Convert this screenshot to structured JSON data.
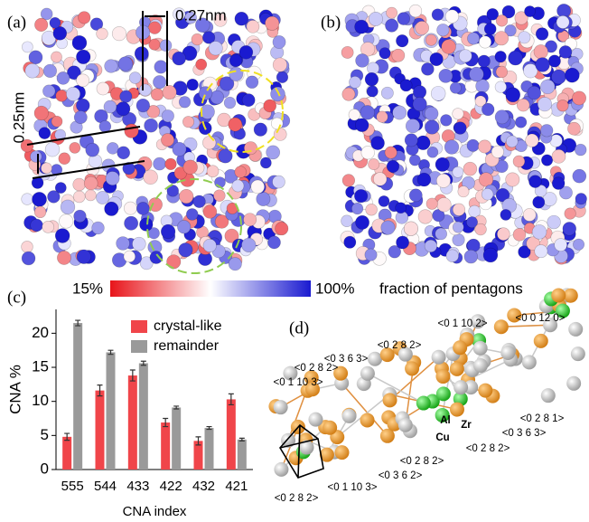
{
  "panels": {
    "a": "(a)",
    "b": "(b)",
    "c": "(c)",
    "d": "(d)"
  },
  "annotations": {
    "spacing_x": "0.27nm",
    "spacing_y": "0.25nm"
  },
  "colorbar": {
    "min_label": "15%",
    "max_label": "100%",
    "title": "fraction of pentagons"
  },
  "diagram_labels": [
    "<0 1 10 2>",
    "<0 0 12 0>",
    "<0 2 8 2>",
    "<0 3 6 3>",
    "<0 2 8 2>",
    "<0 1 10 3>",
    "Al",
    "Zr",
    "Cu",
    "<0 2 8 1>",
    "<0 3 6 3>",
    "<0 2 8 2>",
    "<0 2 8 2>",
    "<0 3 6 2>",
    "<0 1 10 3>",
    "<0 2 8 2>"
  ],
  "chart_data": {
    "type": "bar",
    "x_label": "CNA index",
    "y_label": "CNA %",
    "categories": [
      "555",
      "544",
      "433",
      "422",
      "432",
      "421"
    ],
    "series": [
      {
        "name": "crystal-like",
        "color": "#f0454a",
        "values": [
          4.8,
          11.6,
          13.8,
          6.9,
          4.2,
          10.3
        ],
        "errors": [
          0.5,
          0.8,
          0.8,
          0.6,
          0.6,
          0.8
        ]
      },
      {
        "name": "remainder",
        "color": "#9a9a9a",
        "values": [
          21.5,
          17.2,
          15.6,
          9.1,
          6.1,
          4.4
        ],
        "errors": [
          0.4,
          0.3,
          0.3,
          0.2,
          0.2,
          0.2
        ]
      }
    ],
    "ylim": [
      0,
      23.5
    ],
    "yticks": [
      0,
      5,
      10,
      15,
      20
    ],
    "legend": "upper-right"
  }
}
